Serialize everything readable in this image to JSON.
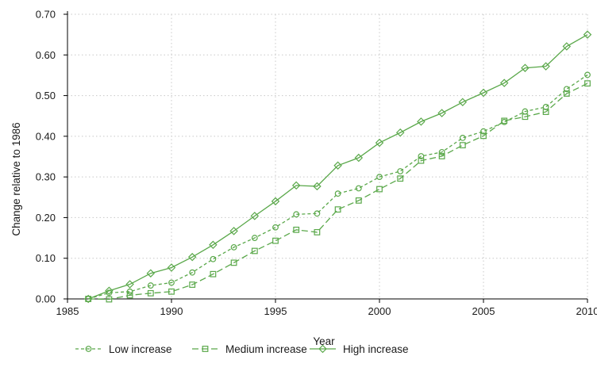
{
  "chart_data": {
    "type": "line",
    "xlabel": "Year",
    "ylabel": "Change relative to 1986",
    "xlim": [
      1985,
      2010
    ],
    "ylim": [
      0,
      0.7
    ],
    "xticks": [
      "1985",
      "1990",
      "1995",
      "2000",
      "2005",
      "2010"
    ],
    "yticks": [
      "0.00",
      "0.10",
      "0.20",
      "0.30",
      "0.40",
      "0.50",
      "0.60",
      "0.70"
    ],
    "grid": true,
    "legend_position": "bottom",
    "color": "#5aa84a",
    "x": [
      1986,
      1987,
      1988,
      1989,
      1990,
      1991,
      1992,
      1993,
      1994,
      1995,
      1996,
      1997,
      1998,
      1999,
      2000,
      2001,
      2002,
      2003,
      2004,
      2005,
      2006,
      2007,
      2008,
      2009,
      2010
    ],
    "series": [
      {
        "name": "Low increase",
        "marker": "circle",
        "line": "dashed",
        "values": [
          0.0,
          0.015,
          0.018,
          0.033,
          0.04,
          0.065,
          0.098,
          0.127,
          0.15,
          0.176,
          0.208,
          0.21,
          0.259,
          0.272,
          0.3,
          0.314,
          0.351,
          0.361,
          0.396,
          0.412,
          0.435,
          0.461,
          0.472,
          0.516,
          0.551
        ]
      },
      {
        "name": "Medium increase",
        "marker": "square",
        "line": "longdash",
        "values": [
          0.0,
          -0.001,
          0.009,
          0.014,
          0.018,
          0.035,
          0.061,
          0.089,
          0.118,
          0.143,
          0.17,
          0.164,
          0.22,
          0.242,
          0.27,
          0.296,
          0.34,
          0.351,
          0.378,
          0.401,
          0.438,
          0.448,
          0.46,
          0.505,
          0.53
        ]
      },
      {
        "name": "High increase",
        "marker": "diamond",
        "line": "solid",
        "values": [
          0.0,
          0.02,
          0.036,
          0.063,
          0.077,
          0.103,
          0.133,
          0.167,
          0.204,
          0.24,
          0.279,
          0.277,
          0.328,
          0.347,
          0.384,
          0.409,
          0.436,
          0.457,
          0.484,
          0.507,
          0.531,
          0.568,
          0.572,
          0.621,
          0.65
        ]
      }
    ]
  }
}
